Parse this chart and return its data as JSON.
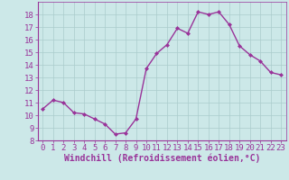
{
  "x": [
    0,
    1,
    2,
    3,
    4,
    5,
    6,
    7,
    8,
    9,
    10,
    11,
    12,
    13,
    14,
    15,
    16,
    17,
    18,
    19,
    20,
    21,
    22,
    23
  ],
  "y": [
    10.5,
    11.2,
    11.0,
    10.2,
    10.1,
    9.7,
    9.3,
    8.5,
    8.6,
    9.7,
    13.7,
    14.9,
    15.6,
    16.9,
    16.5,
    18.2,
    18.0,
    18.2,
    17.2,
    15.5,
    14.8,
    14.3,
    13.4,
    13.2
  ],
  "line_color": "#993399",
  "marker": "D",
  "marker_size": 2,
  "bg_color": "#cce8e8",
  "grid_color": "#aacccc",
  "xlabel": "Windchill (Refroidissement éolien,°C)",
  "xlim": [
    -0.5,
    23.5
  ],
  "ylim": [
    8,
    19
  ],
  "yticks": [
    8,
    9,
    10,
    11,
    12,
    13,
    14,
    15,
    16,
    17,
    18
  ],
  "xticks": [
    0,
    1,
    2,
    3,
    4,
    5,
    6,
    7,
    8,
    9,
    10,
    11,
    12,
    13,
    14,
    15,
    16,
    17,
    18,
    19,
    20,
    21,
    22,
    23
  ],
  "tick_color": "#993399",
  "xlabel_color": "#993399",
  "xlabel_fontsize": 7,
  "tick_fontsize": 6.5,
  "line_width": 1.0
}
